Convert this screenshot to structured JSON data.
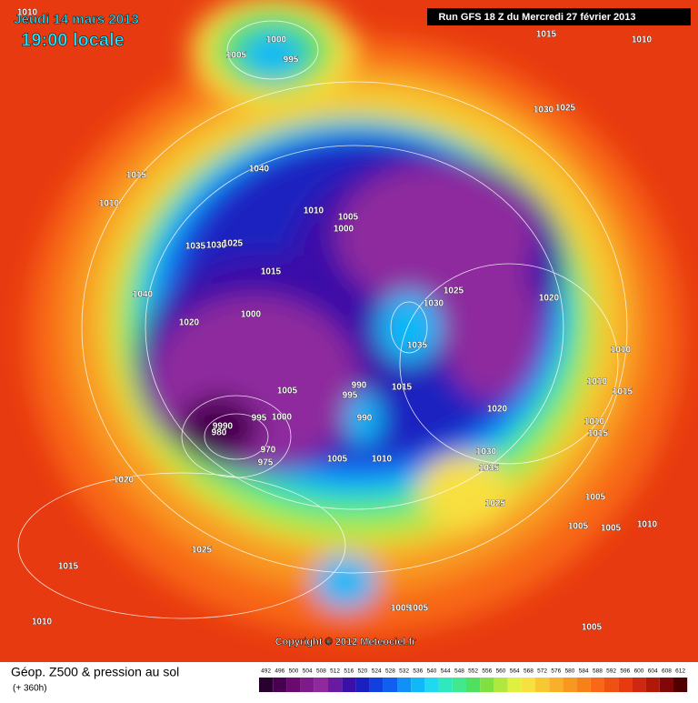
{
  "header": {
    "date": "Jeudi 14 mars 2013",
    "time": "19:00 locale",
    "run": "Run GFS 18 Z du Mercredi 27 février 2013"
  },
  "map": {
    "copyright": "Copyright © 2012 Meteociel.fr",
    "labels": [
      "1010",
      "1000",
      "1005",
      "995",
      "1015",
      "1010",
      "1030",
      "1025",
      "1040",
      "1015",
      "1010",
      "1010",
      "1005",
      "1000",
      "1035",
      "1030",
      "1025",
      "1015",
      "1040",
      "1025",
      "1030",
      "1020",
      "1020",
      "1000",
      "1035",
      "1010",
      "1010",
      "1015",
      "1005",
      "990",
      "995",
      "1015",
      "1020",
      "1010",
      "1015",
      "995",
      "1000",
      "990",
      "9990",
      "980",
      "970",
      "975",
      "1005",
      "1010",
      "1030",
      "1035",
      "1020",
      "1005",
      "1025",
      "1005",
      "1005",
      "1010",
      "1025",
      "1015",
      "1005",
      "1005",
      "1010",
      "1005"
    ]
  },
  "legend": {
    "title": "Géop. Z500 & pression au sol",
    "lead": "(+ 360h)",
    "ticks": [
      492,
      496,
      500,
      504,
      508,
      512,
      516,
      520,
      524,
      528,
      532,
      536,
      540,
      544,
      548,
      552,
      556,
      560,
      564,
      568,
      572,
      576,
      580,
      584,
      588,
      592,
      596,
      600,
      604,
      608,
      612
    ],
    "colors": [
      "#2a0030",
      "#4a0050",
      "#6a0a70",
      "#7e1a8a",
      "#8e2a9e",
      "#6a1aa0",
      "#3a10a8",
      "#1a20c0",
      "#1040e0",
      "#1060f0",
      "#1090f8",
      "#10b8f8",
      "#20d8f0",
      "#30e8c0",
      "#40e890",
      "#50e060",
      "#80e040",
      "#b0e840",
      "#e0f040",
      "#f8e040",
      "#f8c830",
      "#f8b028",
      "#f89820",
      "#f88018",
      "#f86818",
      "#f05010",
      "#e83a10",
      "#d02810",
      "#b01808",
      "#800808",
      "#500000"
    ]
  }
}
